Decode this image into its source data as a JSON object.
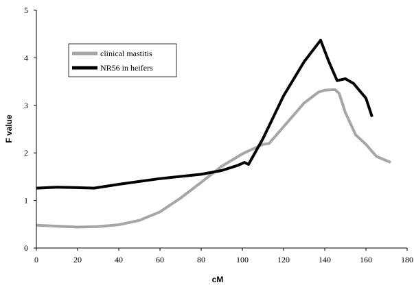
{
  "chart_data": {
    "type": "line",
    "title": "",
    "xlabel": "cM",
    "ylabel": "F value",
    "xlim": [
      0,
      180
    ],
    "ylim": [
      0,
      5
    ],
    "xticks": [
      0,
      20,
      40,
      60,
      80,
      100,
      120,
      140,
      160,
      180
    ],
    "yticks": [
      0,
      1,
      2,
      3,
      4,
      5
    ],
    "grid": false,
    "legend_position": "top-left",
    "series": [
      {
        "name": "clinical mastitis",
        "color": "#a6a6a6",
        "x": [
          0,
          10,
          20,
          30,
          40,
          50,
          60,
          70,
          80,
          90,
          100,
          105,
          110,
          113,
          120,
          130,
          137,
          140,
          145,
          147,
          150,
          155,
          160,
          165,
          172
        ],
        "y": [
          0.48,
          0.46,
          0.44,
          0.45,
          0.49,
          0.58,
          0.76,
          1.05,
          1.38,
          1.72,
          1.98,
          2.08,
          2.18,
          2.2,
          2.55,
          3.05,
          3.28,
          3.32,
          3.33,
          3.25,
          2.85,
          2.38,
          2.18,
          1.93,
          1.8
        ]
      },
      {
        "name": "NR56 in heifers",
        "color": "#000000",
        "x": [
          0,
          10,
          20,
          28,
          40,
          60,
          80,
          90,
          98,
          101,
          103,
          110,
          120,
          130,
          138,
          142,
          146,
          150,
          154,
          160,
          163
        ],
        "y": [
          1.26,
          1.28,
          1.27,
          1.26,
          1.34,
          1.46,
          1.55,
          1.63,
          1.74,
          1.8,
          1.76,
          2.3,
          3.2,
          3.92,
          4.37,
          3.92,
          3.52,
          3.56,
          3.46,
          3.15,
          2.76
        ]
      }
    ]
  }
}
